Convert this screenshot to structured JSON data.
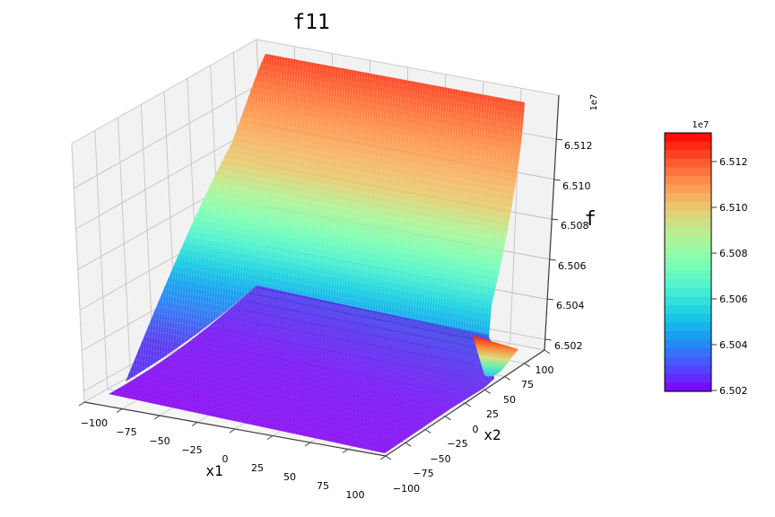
{
  "figure": {
    "title": "f11"
  },
  "chart_data": {
    "type": "surface3d",
    "title": "f11",
    "xlabel": "x1",
    "ylabel": "x2",
    "zlabel": "f",
    "x1_range": [
      -100,
      100
    ],
    "x2_range": [
      -100,
      100
    ],
    "z_offset_text": "1e7",
    "z_floor_1e7": 6.502,
    "z_peak_1e7": 6.513,
    "surface_description": "Nearly flat floor at f ≈ 6.502e7 across most of the x1–x2 domain, with a steep exponential wall rising to ≈ 6.513e7 as x2 approaches +100; colored with rainbow colormap by height.",
    "x1_tick_labels": [
      "−100",
      "−75",
      "−50",
      "−25",
      "0",
      "25",
      "50",
      "75",
      "100"
    ],
    "x2_tick_labels_top_to_bottom": [
      "100",
      "75",
      "50",
      "25",
      "0",
      "−25",
      "−50",
      "−75",
      "−100"
    ],
    "z_tick_labels_bottom_to_top": [
      "6.502",
      "6.504",
      "6.506",
      "6.508",
      "6.510",
      "6.512"
    ],
    "colormap": "rainbow",
    "colormap_stops": [
      "#8000ff",
      "#4d4ffc",
      "#1996f3",
      "#19cee3",
      "#4df2ce",
      "#80ffb4",
      "#b3f296",
      "#e6ce74",
      "#ff964f",
      "#ff4f28",
      "#ff0000"
    ],
    "colorbar": {
      "scale_text": "1e7",
      "tick_labels_top_to_bottom": [
        "6.512",
        "6.510",
        "6.508",
        "6.506",
        "6.504",
        "6.502"
      ],
      "value_min_1e7": 6.502,
      "value_max_1e7": 6.5133
    }
  }
}
